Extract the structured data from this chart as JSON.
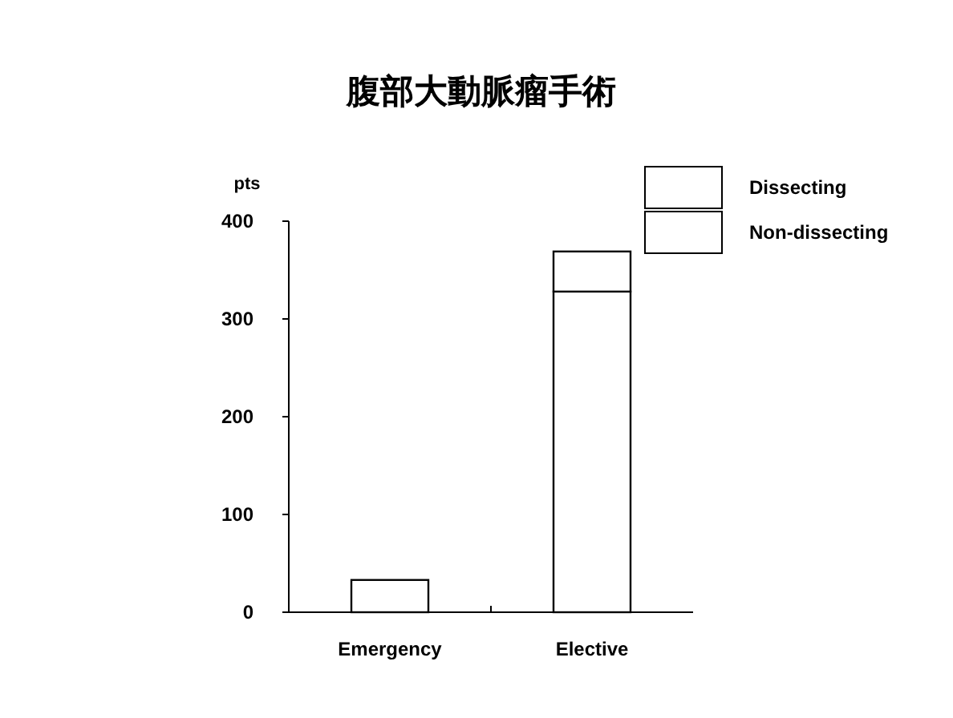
{
  "chart_data": {
    "type": "bar",
    "title": "腹部大動脈瘤手術",
    "ylabel": "pts",
    "categories": [
      "Emergency",
      "Elective"
    ],
    "stacked": true,
    "series": [
      {
        "name": "Non-dissecting",
        "color": "#ffffff",
        "values": [
          33,
          328
        ]
      },
      {
        "name": "Dissecting",
        "color": "#ffffff",
        "values": [
          0,
          41
        ]
      }
    ],
    "ylim": [
      0,
      400
    ],
    "yticks": [
      0,
      100,
      200,
      300,
      400
    ],
    "grid": false,
    "legend": "top right"
  }
}
